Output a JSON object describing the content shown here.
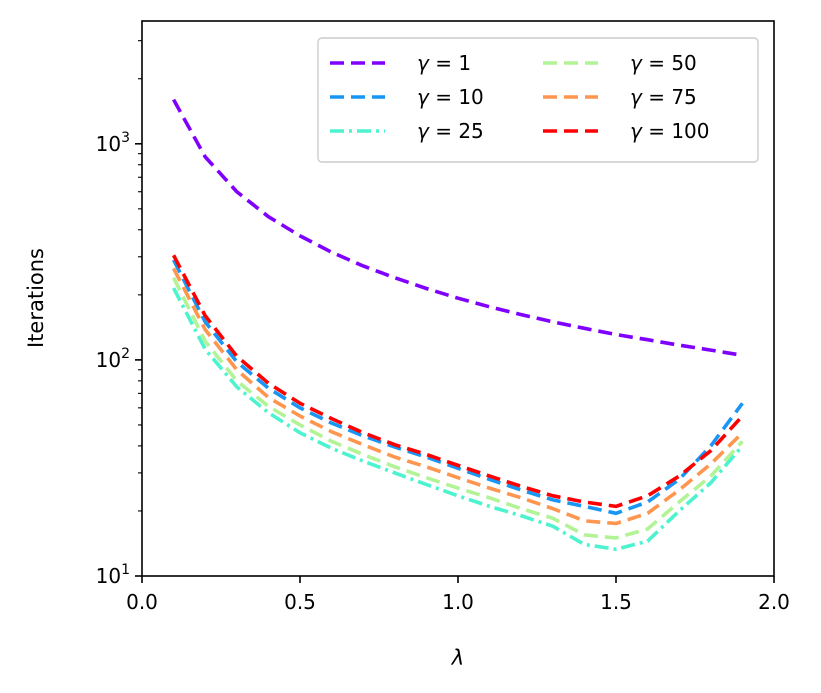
{
  "chart_data": {
    "type": "line",
    "title": "",
    "xlabel": "λ",
    "ylabel": "Iterations",
    "xlim": [
      0.0,
      2.0
    ],
    "ylim": [
      10,
      3700
    ],
    "yscale": "log",
    "grid": false,
    "legend_position": "top-right",
    "x_ticks": [
      {
        "value": 0.0,
        "label": "0.0"
      },
      {
        "value": 0.5,
        "label": "0.5"
      },
      {
        "value": 1.0,
        "label": "1.0"
      },
      {
        "value": 1.5,
        "label": "1.5"
      },
      {
        "value": 2.0,
        "label": "2.0"
      }
    ],
    "y_ticks": [
      {
        "value": 10,
        "base": "10",
        "exp": "1"
      },
      {
        "value": 100,
        "base": "10",
        "exp": "2"
      },
      {
        "value": 1000,
        "base": "10",
        "exp": "3"
      }
    ],
    "x": [
      0.1,
      0.2,
      0.3,
      0.4,
      0.5,
      0.6,
      0.7,
      0.8,
      0.9,
      1.0,
      1.1,
      1.2,
      1.3,
      1.4,
      1.5,
      1.6,
      1.7,
      1.8,
      1.9
    ],
    "series": [
      {
        "name": "γ = 1",
        "gamma": "1",
        "color": "#8000ff",
        "dash": "dashed",
        "values": [
          1600,
          870,
          600,
          460,
          375,
          315,
          272,
          240,
          214,
          193,
          176,
          162,
          150,
          140,
          131,
          124,
          117,
          111,
          105
        ]
      },
      {
        "name": "γ = 10",
        "gamma": "10",
        "color": "#1996f3",
        "dash": "dashed",
        "values": [
          290,
          150,
          98,
          74,
          60,
          51,
          44.5,
          39.5,
          35.5,
          31.5,
          28,
          25,
          22.5,
          21,
          19.5,
          22,
          28,
          40,
          63
        ]
      },
      {
        "name": "γ = 25",
        "gamma": "25",
        "color": "#4df3ce",
        "dash": "dashdot",
        "values": [
          215,
          112,
          75,
          57,
          46,
          39,
          34,
          30,
          26.5,
          23.5,
          21,
          19,
          17,
          14,
          13.3,
          14.5,
          20,
          27,
          40
        ]
      },
      {
        "name": "γ = 50",
        "gamma": "50",
        "color": "#b2f396",
        "dash": "dashed",
        "values": [
          240,
          122,
          80,
          61,
          50,
          42,
          36.5,
          32,
          28.5,
          25.5,
          23,
          20.5,
          18.5,
          15.5,
          15,
          16.5,
          22,
          29,
          42
        ]
      },
      {
        "name": "γ = 75",
        "gamma": "75",
        "color": "#ff964f",
        "dash": "dashed",
        "values": [
          265,
          138,
          90,
          67,
          55,
          46.5,
          40.5,
          35.5,
          32,
          28.5,
          25.5,
          23,
          20.5,
          18,
          17.5,
          19.5,
          25,
          33,
          46
        ]
      },
      {
        "name": "γ = 100",
        "gamma": "100",
        "color": "#ff0000",
        "dash": "dashed",
        "values": [
          305,
          160,
          104,
          78,
          63,
          53.5,
          46,
          40.5,
          36.5,
          32.5,
          29,
          26,
          23.5,
          22,
          21,
          23.5,
          29,
          38,
          55
        ]
      }
    ]
  }
}
